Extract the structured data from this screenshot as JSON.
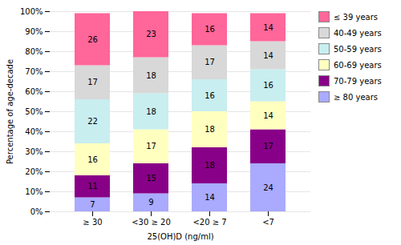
{
  "chart_data": {
    "type": "bar",
    "stacked": true,
    "data_labels": true,
    "grid": true,
    "legend": "right",
    "categories": [
      "≥ 30",
      "<30 ≥ 20",
      "<20 ≥ 7",
      "<7"
    ],
    "series": [
      {
        "name": "≤ 39 years",
        "values": [
          26,
          23,
          16,
          14
        ],
        "color": "#FF6699"
      },
      {
        "name": "40-49 years",
        "values": [
          17,
          18,
          17,
          14
        ],
        "color": "#D8D8D8"
      },
      {
        "name": "50-59 years",
        "values": [
          22,
          18,
          16,
          16
        ],
        "color": "#C8EEF0"
      },
      {
        "name": "60-69 years",
        "values": [
          16,
          17,
          18,
          14
        ],
        "color": "#FFFFC0"
      },
      {
        "name": "70-79 years",
        "values": [
          11,
          15,
          18,
          17
        ],
        "color": "#880088"
      },
      {
        "name": "≥ 80 years",
        "values": [
          7,
          9,
          14,
          24
        ],
        "color": "#AAAAFF"
      }
    ],
    "xlabel": "25(OH)D (ng/ml)",
    "ylabel": "Percentage of age-decade",
    "ylim": [
      0,
      100
    ],
    "yticks": [
      {
        "value": 0,
        "label": "0%"
      },
      {
        "value": 10,
        "label": "10%"
      },
      {
        "value": 20,
        "label": "20%"
      },
      {
        "value": 30,
        "label": "30%"
      },
      {
        "value": 40,
        "label": "40%"
      },
      {
        "value": 50,
        "label": "50%"
      },
      {
        "value": 60,
        "label": "60%"
      },
      {
        "value": 70,
        "label": "70%"
      },
      {
        "value": 80,
        "label": "80%"
      },
      {
        "value": 90,
        "label": "90%"
      },
      {
        "value": 100,
        "label": "100%"
      }
    ]
  }
}
